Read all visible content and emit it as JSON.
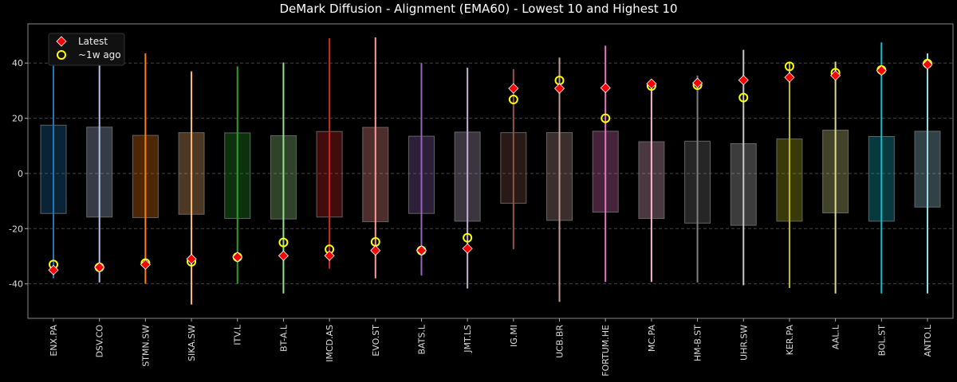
{
  "chart_data": {
    "type": "box",
    "title": "DeMark Diffusion - Alignment (EMA60) - Lowest 10 and Highest 10",
    "xlabel": "",
    "ylabel": "",
    "ylim": [
      -52.5,
      54.2
    ],
    "yticks": [
      -40,
      -20,
      0,
      20,
      40
    ],
    "grid": "horizontal dashed",
    "legend_position": "top-left",
    "legend": [
      {
        "label": "Latest",
        "marker": "diamond",
        "color": "#ff0000"
      },
      {
        "label": "~1w ago",
        "marker": "circle",
        "color": "#ffff00"
      }
    ],
    "categories": [
      "ENX.PA",
      "DSV.CO",
      "STMN.SW",
      "SIKA.SW",
      "ITV.L",
      "BT-A.L",
      "IMCD.AS",
      "EVO.ST",
      "BATS.L",
      "JMT.LS",
      "IG.MI",
      "UCB.BR",
      "FORTUM.HE",
      "MC.PA",
      "HM-B.ST",
      "UHR.SW",
      "KER.PA",
      "AAL.L",
      "BOL.ST",
      "ANTO.L"
    ],
    "colors": [
      "#1f77b4",
      "#aec7e8",
      "#ff7f0e",
      "#ffbb78",
      "#2ca02c",
      "#98df8a",
      "#d62728",
      "#ff9896",
      "#9467bd",
      "#c5b0d5",
      "#8c564b",
      "#c49c94",
      "#e377c2",
      "#f7b6d2",
      "#7f7f7f",
      "#c7c7c7",
      "#bcbd22",
      "#dbdb8d",
      "#17becf",
      "#9edae5"
    ],
    "whisker_high": [
      45,
      49,
      43.5,
      37,
      38.8,
      40.2,
      49,
      49.3,
      40,
      38.3,
      37.8,
      42,
      46.3,
      33.5,
      35.5,
      44.8,
      40.5,
      40.5,
      47.5,
      43.5
    ],
    "whisker_low": [
      -38,
      -39.5,
      -40,
      -47.5,
      -40,
      -43.5,
      -34.5,
      -38,
      -37,
      -41.7,
      -27.5,
      -46.5,
      -39.3,
      -39.3,
      -39.5,
      -40.5,
      -41.5,
      -43.5,
      -43.5,
      -43.5
    ],
    "box_high": [
      17.5,
      16.8,
      13.8,
      14.8,
      14.7,
      13.7,
      15.2,
      16.7,
      13.5,
      15,
      14.8,
      14.8,
      15.3,
      11.5,
      11.7,
      10.8,
      12.5,
      15.7,
      13.4,
      15.3
    ],
    "box_low": [
      -14.5,
      -15.8,
      -16,
      -14.8,
      -16.3,
      -16.5,
      -15.8,
      -17.5,
      -14.5,
      -17.3,
      -10.8,
      -17,
      -14,
      -16.3,
      -18,
      -18.8,
      -17.3,
      -14.3,
      -17.3,
      -12.2
    ],
    "latest": [
      -35,
      -34,
      -33,
      -31,
      -30.3,
      -29.8,
      -29.8,
      -27.9,
      -27.9,
      -27.2,
      30.8,
      30.8,
      31,
      32.5,
      32.8,
      33.8,
      34.8,
      35.5,
      37.3,
      39.5
    ],
    "week_ago": [
      -33,
      -34,
      -32.5,
      -32,
      -30.3,
      -25,
      -27.5,
      -24.8,
      -27.9,
      -23.3,
      26.8,
      33.7,
      20,
      31.7,
      32,
      27.5,
      38.8,
      36.5,
      37.5,
      39.8
    ]
  }
}
